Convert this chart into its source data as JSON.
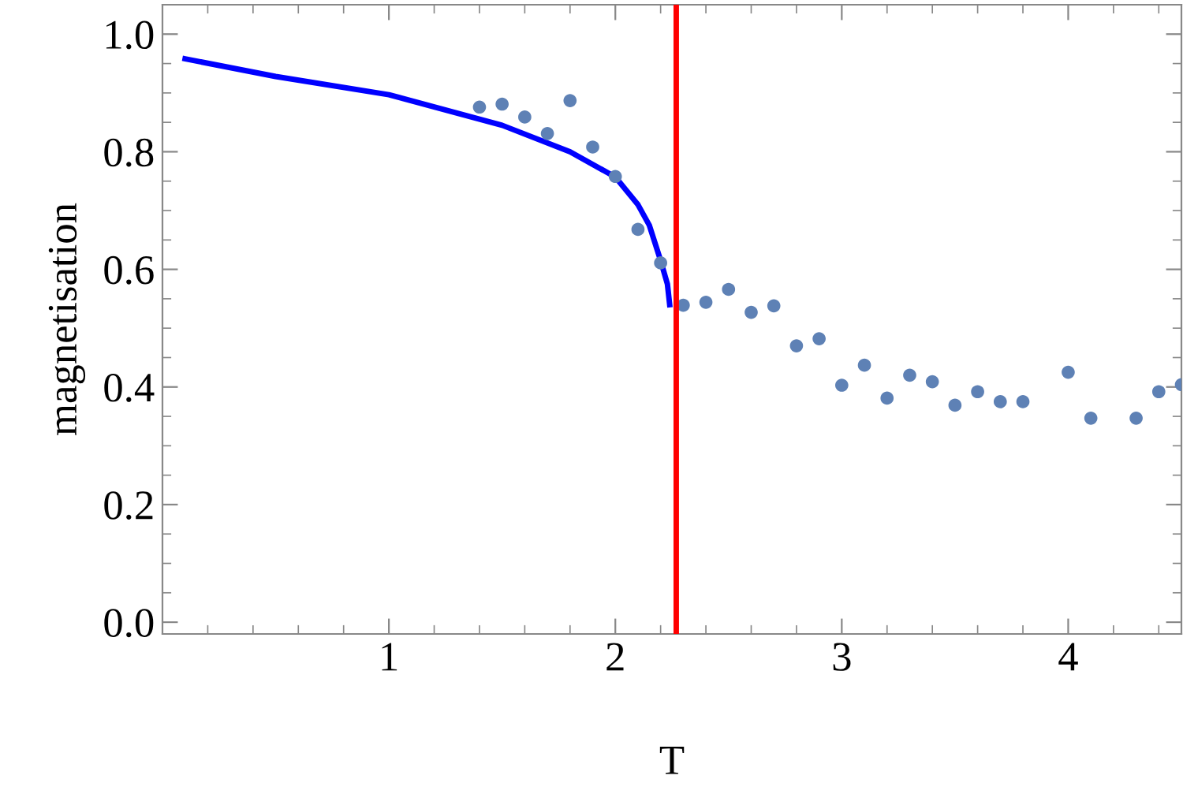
{
  "chart_data": {
    "type": "scatter",
    "xlabel": "T",
    "ylabel": "magnetisation",
    "xlim": [
      0,
      4.5
    ],
    "ylim": [
      -0.02,
      1.05
    ],
    "xticks": [
      1,
      2,
      3,
      4
    ],
    "yticks": [
      {
        "value": 0,
        "label": "0.0"
      },
      0.2,
      0.4,
      0.6,
      0.8,
      {
        "value": 1,
        "label": "1.0"
      }
    ],
    "grid": false,
    "series": [
      {
        "type": "line",
        "color": "#0000ff",
        "line_style": "solid",
        "marker": "none",
        "x": [
          0.1,
          0.5,
          1.0,
          1.5,
          1.8,
          2.0,
          2.1,
          2.15,
          2.2,
          2.23,
          2.24
        ],
        "values": [
          0.958,
          0.928,
          0.897,
          0.845,
          0.8,
          0.757,
          0.71,
          0.675,
          0.615,
          0.575,
          0.54
        ]
      },
      {
        "color": "#5e81b5",
        "marker": "circle",
        "x": [
          1.4,
          1.5,
          1.6,
          1.7,
          1.8,
          1.9,
          2.0,
          2.1,
          2.2,
          2.3,
          2.4,
          2.5,
          2.6,
          2.7,
          2.8,
          2.9,
          3.0,
          3.1,
          3.2,
          3.3,
          3.4,
          3.5,
          3.6,
          3.7,
          3.8,
          4.0,
          4.1,
          4.3,
          4.4,
          4.5
        ],
        "values": [
          0.876,
          0.881,
          0.859,
          0.831,
          0.887,
          0.808,
          0.758,
          0.668,
          0.611,
          0.539,
          0.544,
          0.566,
          0.527,
          0.538,
          0.47,
          0.482,
          0.403,
          0.437,
          0.381,
          0.42,
          0.409,
          0.369,
          0.392,
          0.375,
          0.375,
          0.425,
          0.347,
          0.347,
          0.392,
          0.404
        ]
      }
    ],
    "ref_lines": [
      {
        "axis": "x",
        "value": 2.269,
        "color": "#ff0000",
        "line_style": "solid"
      }
    ]
  }
}
